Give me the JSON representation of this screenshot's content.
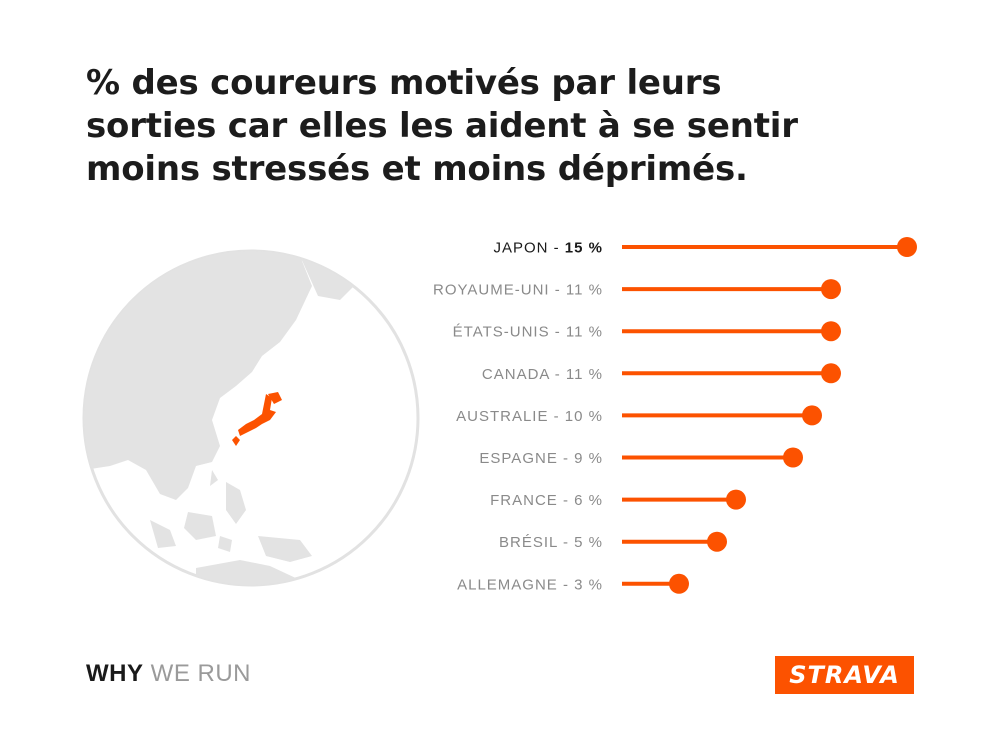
{
  "title": "% des coureurs motivés par leurs sorties car elles les aident à se sentir moins stressés et moins déprimés.",
  "colors": {
    "accent": "#fc5200",
    "globe": "#e3e3e3",
    "label": "#8a8a8a",
    "label_highlight": "#1a1a1a"
  },
  "chart_data": {
    "type": "bar",
    "style": "lollipop",
    "orientation": "horizontal",
    "categories": [
      "JAPON",
      "ROYAUME-UNI",
      "ÉTATS-UNIS",
      "CANADA",
      "AUSTRALIE",
      "ESPAGNE",
      "FRANCE",
      "BRÉSIL",
      "ALLEMAGNE"
    ],
    "values": [
      15,
      11,
      11,
      11,
      10,
      9,
      6,
      5,
      3
    ],
    "labels": [
      "JAPON - ",
      "ROYAUME-UNI - 11 %",
      "ÉTATS-UNIS - 11 %",
      "CANADA - 11 %",
      "AUSTRALIE - 10 %",
      "ESPAGNE - 9 %",
      "FRANCE - 6 %",
      "BRÉSIL - 5 %",
      "ALLEMAGNE - 3 %"
    ],
    "highlight_value_label": "15 %",
    "highlight_index": 0
  },
  "footer": {
    "why": "WHY",
    "we_run": " WE RUN",
    "logo": "STRAVA"
  }
}
